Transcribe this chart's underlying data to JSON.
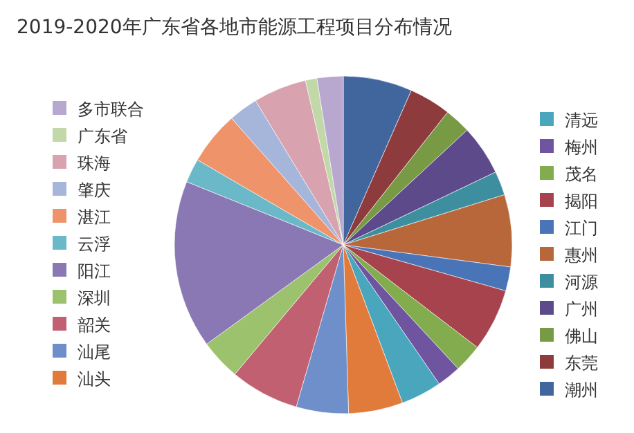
{
  "chart_data": {
    "type": "pie",
    "title": "2019-2020年广东省各地市能源工程项目分布情况",
    "legend": "left",
    "categories": [
      "潮州",
      "东莞",
      "佛山",
      "广州",
      "河源",
      "惠州",
      "江门",
      "揭阳",
      "茂名",
      "梅州",
      "清远",
      "汕头",
      "汕尾",
      "韶关",
      "深圳",
      "阳江",
      "云浮",
      "湛江",
      "肇庆",
      "珠海",
      "广东省",
      "多市联合"
    ],
    "values": [
      6.6,
      4.0,
      2.5,
      4.8,
      2.3,
      6.9,
      2.3,
      6.0,
      2.7,
      2.3,
      3.9,
      5.2,
      5.0,
      6.6,
      3.9,
      16.1,
      2.3,
      5.1,
      2.8,
      5.1,
      1.1,
      2.5
    ],
    "colors": [
      "#41659d",
      "#8e3b3e",
      "#789a45",
      "#5d4a8a",
      "#3d8fa0",
      "#b8673a",
      "#4a74b8",
      "#a7434d",
      "#82ac4e",
      "#6f55a0",
      "#4aa6bd",
      "#e07b3c",
      "#6f8fcb",
      "#c16070",
      "#9cc26e",
      "#8a78b4",
      "#6ab8c8",
      "#ef946a",
      "#a6b6db",
      "#d8a2ae",
      "#c2d8a8",
      "#b8a8cf"
    ]
  }
}
